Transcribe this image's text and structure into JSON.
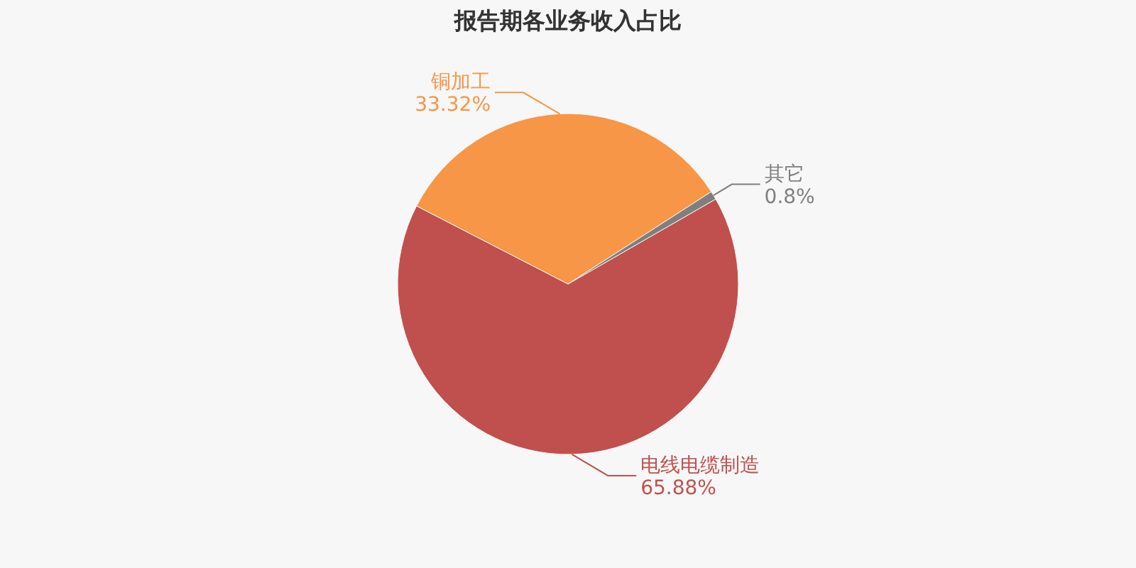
{
  "chart_data": {
    "type": "pie",
    "title": "报告期各业务收入占比",
    "categories": [
      "电线电缆制造",
      "铜加工",
      "其它"
    ],
    "values": [
      65.88,
      33.32,
      0.8
    ],
    "colors": [
      "#c0504d",
      "#f79646",
      "#7f7f7f"
    ],
    "value_labels": [
      "65.88%",
      "33.32%",
      "0.8%"
    ]
  }
}
